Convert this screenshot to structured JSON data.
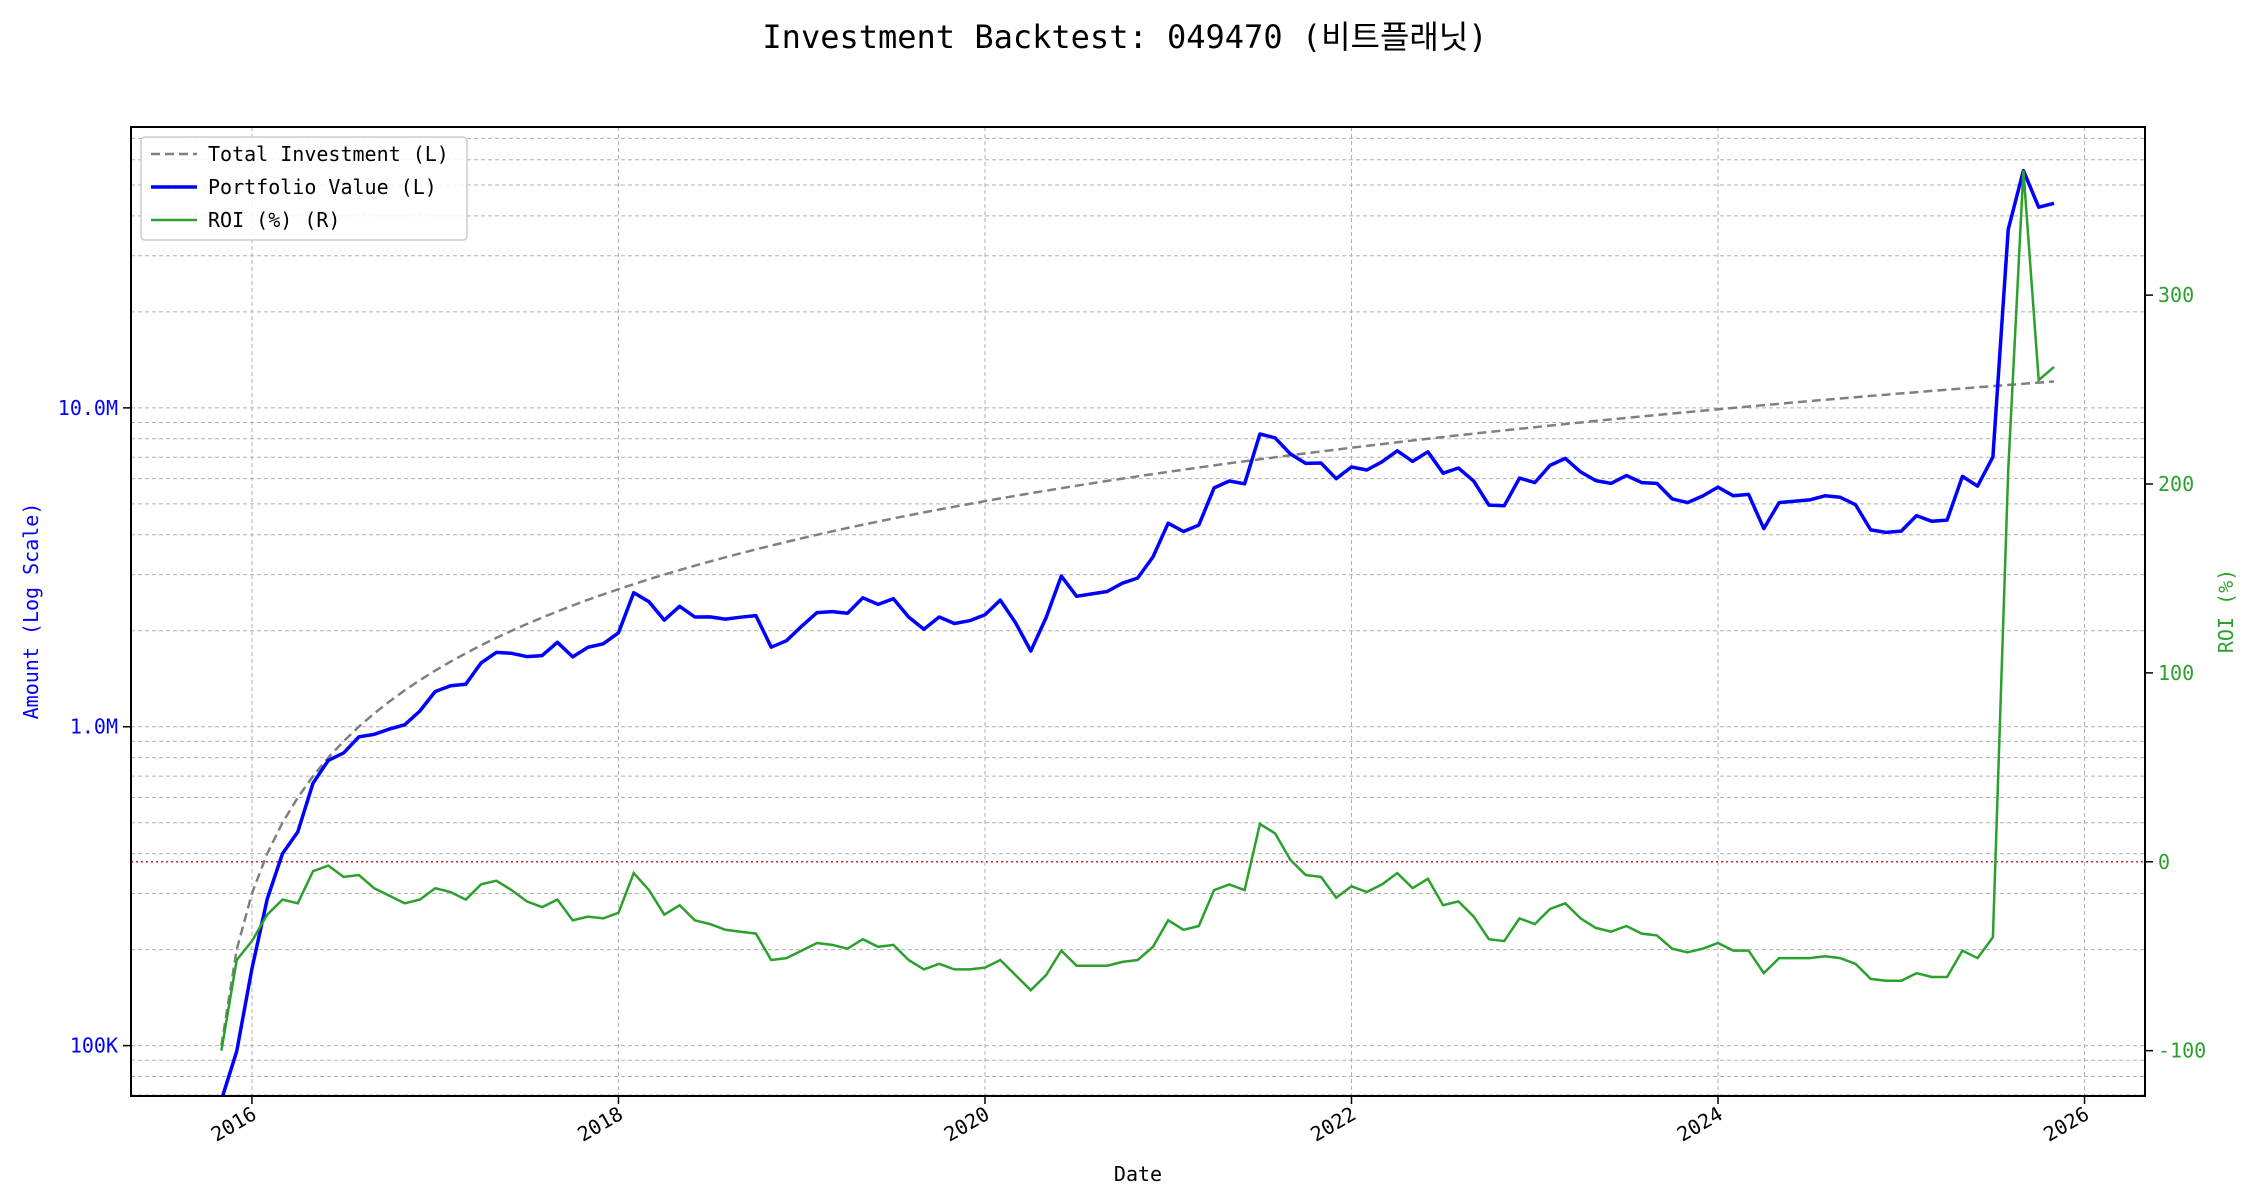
{
  "chart_data": {
    "type": "line",
    "title": "Investment Backtest: 049470 (비트플래닛)",
    "xlabel": "Date",
    "ylabel_left": "Amount (Log Scale)",
    "ylabel_right": "ROI (%)",
    "x_start": "2015-10",
    "x_step": "1 month (month-end)",
    "x_ticks": [
      "2016",
      "2018",
      "2020",
      "2022",
      "2024",
      "2026"
    ],
    "y_left_scale": "log",
    "y_left_ticks": [
      {
        "value": 10000000,
        "label": "10.0M"
      },
      {
        "value": 1000000,
        "label": "1.0M"
      },
      {
        "value": 100000,
        "label": "100K"
      }
    ],
    "y_left_range": [
      69500,
      76000000
    ],
    "y_right_ticks": [
      {
        "value": 300,
        "label": "300"
      },
      {
        "value": 200,
        "label": "200"
      },
      {
        "value": 100,
        "label": "100"
      },
      {
        "value": 0,
        "label": "0"
      },
      {
        "value": -100,
        "label": "-100"
      }
    ],
    "y_right_range": [
      -124,
      389
    ],
    "x_range": [
      2015.34,
      2026.33
    ],
    "grid": true,
    "legend_position": "top-left",
    "reference_line": {
      "axis": "right",
      "value": 0,
      "style": "dotted",
      "color": "#d62728"
    },
    "series": [
      {
        "name": "Total Investment (L)",
        "axis": "left",
        "color": "#808080",
        "style": "dashed",
        "unit": "M",
        "values": [
          0.1,
          0.2,
          0.3,
          0.4,
          0.5,
          0.6,
          0.7,
          0.8,
          0.9,
          1.0,
          1.1,
          1.2,
          1.3,
          1.4,
          1.5,
          1.6,
          1.7,
          1.8,
          1.9,
          2.0,
          2.1,
          2.2,
          2.3,
          2.4,
          2.5,
          2.6,
          2.7,
          2.8,
          2.9,
          3.0,
          3.1,
          3.2,
          3.3,
          3.4,
          3.5,
          3.6,
          3.7,
          3.8,
          3.9,
          4.0,
          4.1,
          4.2,
          4.3,
          4.4,
          4.5,
          4.6,
          4.7,
          4.8,
          4.9,
          5.0,
          5.1,
          5.2,
          5.3,
          5.4,
          5.5,
          5.6,
          5.7,
          5.8,
          5.9,
          6.0,
          6.1,
          6.2,
          6.3,
          6.4,
          6.5,
          6.6,
          6.7,
          6.8,
          6.9,
          7.0,
          7.1,
          7.2,
          7.3,
          7.4,
          7.5,
          7.6,
          7.7,
          7.8,
          7.9,
          8.0,
          8.1,
          8.2,
          8.3,
          8.4,
          8.5,
          8.6,
          8.7,
          8.8,
          8.9,
          9.0,
          9.1,
          9.2,
          9.3,
          9.4,
          9.5,
          9.6,
          9.7,
          9.8,
          9.9,
          10.0,
          10.1,
          10.2,
          10.3,
          10.4,
          10.5,
          10.6,
          10.7,
          10.8,
          10.9,
          11.0,
          11.1,
          11.2,
          11.3,
          11.4,
          11.5,
          11.6,
          11.7,
          11.8,
          11.9,
          12.0,
          12.1
        ]
      },
      {
        "name": "Portfolio Value (L)",
        "axis": "left",
        "color": "#0000ff",
        "style": "solid",
        "derived": "Total Investment × (1 + ROI/100)"
      },
      {
        "name": "ROI (%) (R)",
        "axis": "right",
        "color": "#2ca02c",
        "style": "solid",
        "values": [
          -100,
          -52,
          -42,
          -28,
          -20,
          -22,
          -5,
          -2,
          -8,
          -7,
          -14,
          -18,
          -22,
          -20,
          -14,
          -16,
          -20,
          -12,
          -10,
          -15,
          -21,
          -24,
          -20,
          -31,
          -29,
          -30,
          -27,
          -6,
          -15,
          -28,
          -23,
          -31,
          -33,
          -36,
          -37,
          -38,
          -52,
          -51,
          -47,
          -43,
          -44,
          -46,
          -41,
          -45,
          -44,
          -52,
          -57,
          -54,
          -57,
          -57,
          -56,
          -52,
          -60,
          -68,
          -60,
          -47,
          -55,
          -55,
          -55,
          -53,
          -52,
          -45,
          -31,
          -36,
          -34,
          -15,
          -12,
          -15,
          20,
          15,
          1,
          -7,
          -8,
          -19,
          -13,
          -16,
          -12,
          -6,
          -14,
          -9,
          -23,
          -21,
          -29,
          -41,
          -42,
          -30,
          -33,
          -25,
          -22,
          -30,
          -35,
          -37,
          -34,
          -38,
          -39,
          -46,
          -48,
          -46,
          -43,
          -47,
          -47,
          -59,
          -51,
          -51,
          -51,
          -50,
          -51,
          -54,
          -62,
          -63,
          -63,
          -59,
          -61,
          -61,
          -47,
          -51,
          -40,
          207,
          366,
          255,
          262
        ]
      }
    ]
  }
}
